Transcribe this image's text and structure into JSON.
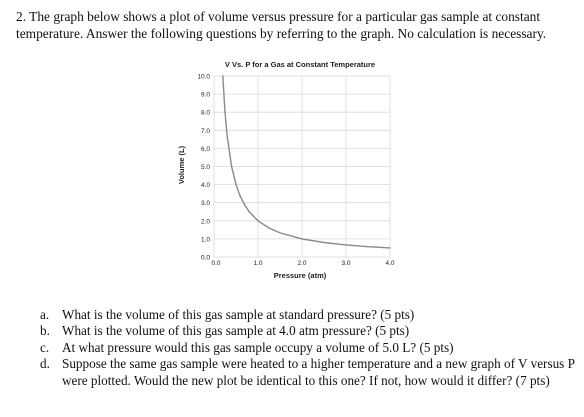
{
  "question": {
    "text": "2. The graph below shows a plot of volume versus pressure for a particular gas sample at constant temperature. Answer the following questions by referring to the graph. No calculation is necessary."
  },
  "chart_data": {
    "type": "line",
    "title": "V Vs. P for a Gas at Constant Temperature",
    "xlabel": "Pressure (atm)",
    "ylabel": "Volume (L)",
    "xlim": [
      0,
      4.0
    ],
    "ylim": [
      0,
      10.0
    ],
    "x_ticks": [
      "0.0",
      "1.0",
      "2.0",
      "3.0",
      "4.0"
    ],
    "y_ticks": [
      "0.0",
      "1.0",
      "2.0",
      "3.0",
      "4.0",
      "5.0",
      "6.0",
      "7.0",
      "8.0",
      "9.0",
      "10.0"
    ],
    "grid": true,
    "series": [
      {
        "color": "#8a8a8a",
        "x": [
          0.2,
          0.25,
          0.3,
          0.4,
          0.5,
          0.6,
          0.7,
          0.8,
          1.0,
          1.25,
          1.5,
          2.0,
          2.5,
          3.0,
          3.5,
          4.0
        ],
        "y": [
          10.0,
          8.0,
          6.67,
          5.0,
          4.0,
          3.33,
          2.86,
          2.5,
          2.0,
          1.6,
          1.33,
          1.0,
          0.8,
          0.67,
          0.57,
          0.5
        ]
      }
    ]
  },
  "parts": [
    {
      "label": "a.",
      "text": "What is the volume of this gas sample at standard pressure? (5 pts)"
    },
    {
      "label": "b.",
      "text": "What is the volume of this gas sample at 4.0 atm pressure? (5 pts)"
    },
    {
      "label": "c.",
      "text": "At what pressure would this gas sample occupy a volume of 5.0 L?  (5 pts)"
    },
    {
      "label": "d.",
      "text": "Suppose the same gas sample were heated to a higher temperature and a new graph of V versus P were plotted. Would the new plot be identical to this one? If not, how would it differ? (7 pts)"
    }
  ]
}
